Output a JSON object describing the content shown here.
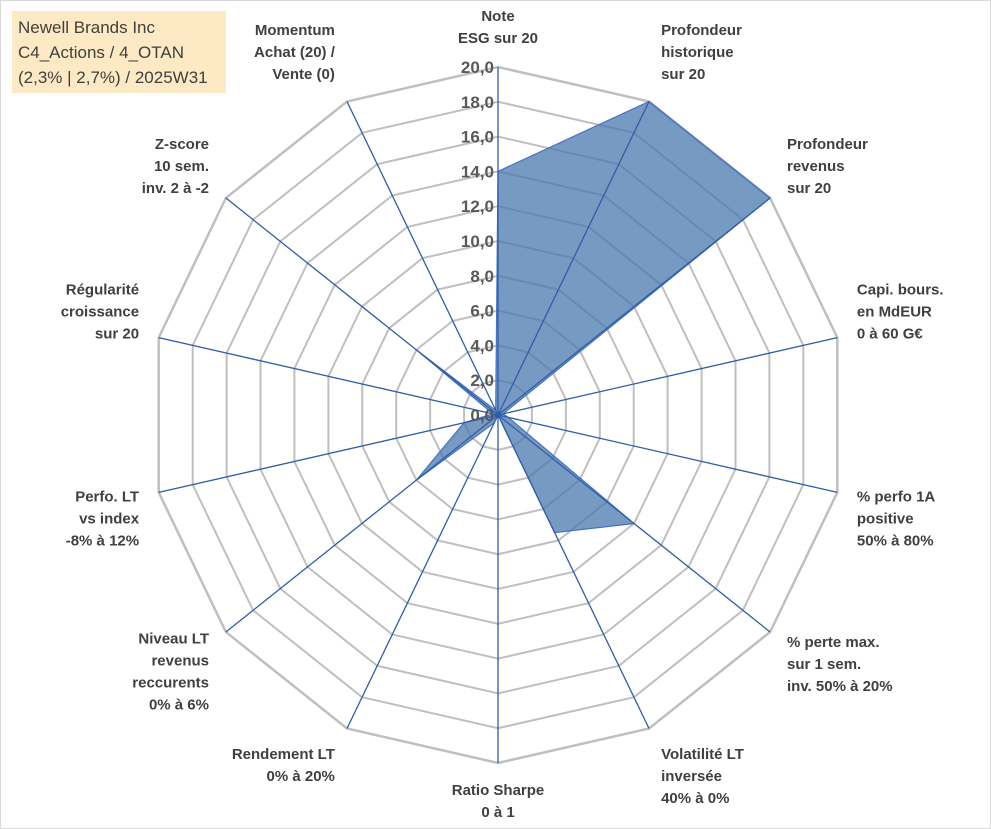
{
  "info": {
    "line1": "Newell Brands Inc",
    "line2": "C4_Actions / 4_OTAN",
    "line3": "(2,3% | 2,7%) / 2025W31"
  },
  "colors": {
    "fill": "#4a78ad",
    "stroke": "#4472c4",
    "grid": "#bfbfbf",
    "spoke": "#2f5da8",
    "info_bg": "#fde9c4"
  },
  "chart_data": {
    "type": "radar",
    "rmin": 0,
    "rmax": 20,
    "rings": 10,
    "ticks": [
      "0,0",
      "2,0",
      "4,0",
      "6,0",
      "8,0",
      "10,0",
      "12,0",
      "14,0",
      "16,0",
      "18,0",
      "20,0"
    ],
    "axes": [
      [
        "Note",
        "ESG sur 20"
      ],
      [
        "Profondeur",
        "historique",
        "sur 20"
      ],
      [
        "Profondeur",
        "revenus",
        "sur 20"
      ],
      [
        "Capi. bours.",
        "en MdEUR",
        "0 à 60 G€"
      ],
      [
        "% perfo 1A",
        "positive",
        "50% à 80%"
      ],
      [
        "% perte max.",
        "sur 1 sem.",
        "inv. 50% à 20%"
      ],
      [
        "Volatilité LT",
        "inversée",
        "40% à 0%"
      ],
      [
        "Ratio Sharpe",
        "0 à 1"
      ],
      [
        "Rendement LT",
        "0% à 20%"
      ],
      [
        "Niveau LT",
        "revenus",
        "reccurents",
        "0% à 6%"
      ],
      [
        "Perfo. LT",
        "vs index",
        "-8% à 12%"
      ],
      [
        "Régularité",
        "croissance",
        "sur 20"
      ],
      [
        "Z-score",
        "10 sem.",
        "inv. 2 à -2"
      ],
      [
        "Momentum",
        "Achat (20) /",
        "Vente (0)"
      ]
    ],
    "values": [
      14,
      20,
      20,
      0.3,
      0.6,
      10,
      7.5,
      0,
      0.5,
      6,
      2,
      0.3,
      6,
      0.3
    ]
  }
}
